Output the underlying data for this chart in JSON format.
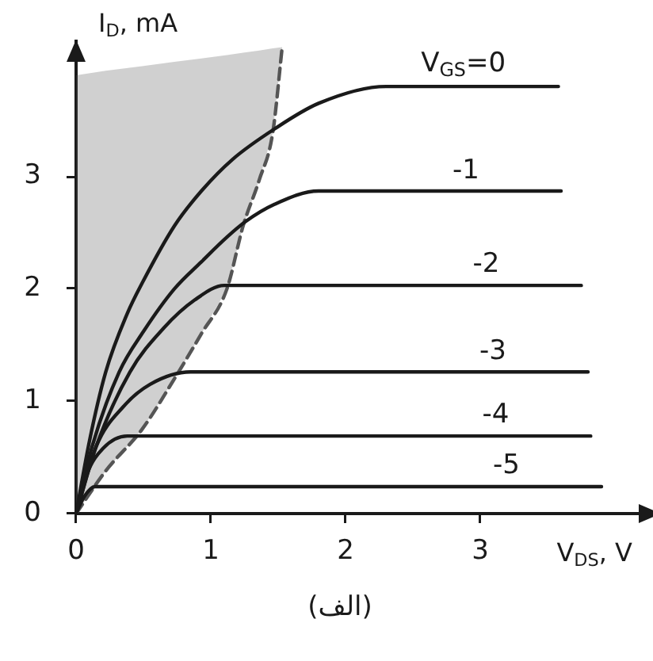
{
  "chart_data": {
    "type": "line",
    "xlabel": "V$_{DS}$, V",
    "ylabel": "I$_{D}$, mA",
    "annotations": [
      "(الف)"
    ],
    "xlim": [
      0,
      4.2
    ],
    "ylim": [
      0,
      4.2
    ],
    "xticks": [
      0,
      1,
      2,
      3
    ],
    "yticks": [
      0,
      1,
      2,
      3
    ],
    "grid": false,
    "legend": false,
    "marker": "none",
    "line_style": "solid",
    "series": [
      {
        "name": "V$_{GS}$=0",
        "color": "#1a1a1a",
        "x": [
          0,
          0.1,
          0.22,
          0.38,
          0.49,
          0.73,
          0.93,
          1.16,
          1.47,
          1.8,
          2.3,
          3.58
        ],
        "values": [
          0,
          0.65,
          1.26,
          1.78,
          2.05,
          2.56,
          2.87,
          3.15,
          3.42,
          3.65,
          3.8,
          3.8
        ]
      },
      {
        "name": "-1",
        "color": "#1a1a1a",
        "x": [
          0,
          0.12,
          0.32,
          0.5,
          0.73,
          0.93,
          1.12,
          1.26,
          1.47,
          1.8,
          3.6
        ],
        "values": [
          0,
          0.6,
          1.26,
          1.62,
          2.0,
          2.24,
          2.46,
          2.6,
          2.75,
          2.87,
          2.87
        ]
      },
      {
        "name": "-2",
        "color": "#1a1a1a",
        "x": [
          0,
          0.15,
          0.4,
          0.65,
          0.88,
          1.1,
          3.75
        ],
        "values": [
          0,
          0.6,
          1.26,
          1.65,
          1.9,
          2.03,
          2.03
        ]
      },
      {
        "name": "-3",
        "color": "#1a1a1a",
        "x": [
          0,
          0.15,
          0.35,
          0.55,
          0.85,
          3.8
        ],
        "values": [
          0,
          0.6,
          0.95,
          1.15,
          1.26,
          1.26
        ]
      },
      {
        "name": "-4",
        "color": "#1a1a1a",
        "x": [
          0,
          0.08,
          0.2,
          0.38,
          3.82
        ],
        "values": [
          0,
          0.35,
          0.58,
          0.69,
          0.69
        ]
      },
      {
        "name": "-5",
        "color": "#1a1a1a",
        "x": [
          0,
          0.06,
          0.14,
          3.9
        ],
        "values": [
          0,
          0.15,
          0.24,
          0.24
        ]
      },
      {
        "color": "#555555",
        "line_style": "dashed",
        "x": [
          0,
          0.22,
          0.49,
          0.73,
          0.93,
          1.12,
          1.24,
          1.36,
          1.46,
          1.53
        ],
        "values": [
          0,
          0.38,
          0.75,
          1.2,
          1.6,
          2.0,
          2.56,
          2.97,
          3.39,
          4.15
        ],
        "lower": [
          0,
          0.38,
          0.75,
          1.2,
          1.6,
          2.0,
          2.56,
          2.97,
          3.39,
          4.15
        ],
        "upper": [
          3.9,
          3.94,
          3.98,
          4.02,
          4.05,
          4.08,
          4.1,
          4.12,
          4.14,
          4.15
        ]
      }
    ]
  }
}
